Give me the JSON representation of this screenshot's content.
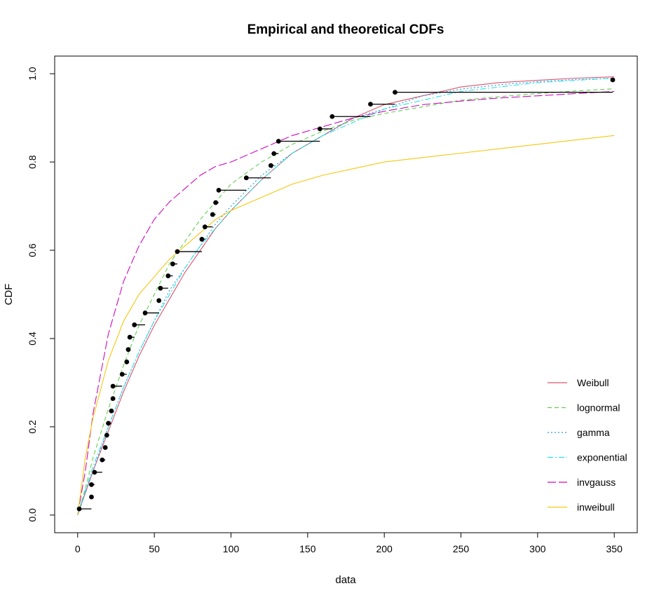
{
  "chart_data": {
    "type": "line",
    "title": "Empirical and theoretical CDFs",
    "xlabel": "data",
    "ylabel": "CDF",
    "xlim": [
      -15,
      365
    ],
    "ylim": [
      -0.04,
      1.04
    ],
    "xticks": [
      0,
      50,
      100,
      150,
      200,
      250,
      300,
      350
    ],
    "yticks": [
      0.0,
      0.2,
      0.4,
      0.6,
      0.8,
      1.0
    ],
    "xtick_labels": [
      "0",
      "50",
      "100",
      "150",
      "200",
      "250",
      "300",
      "350"
    ],
    "ytick_labels": [
      "0.0",
      "0.2",
      "0.4",
      "0.6",
      "0.8",
      "1.0"
    ],
    "legend_position": "bottom-right",
    "empirical": {
      "x": [
        1,
        9,
        9,
        11,
        16,
        18,
        19,
        20,
        22,
        23,
        23,
        29,
        32,
        33,
        34,
        37,
        44,
        53,
        54,
        59,
        62,
        65,
        81,
        83,
        88,
        90,
        92,
        110,
        126,
        128,
        131,
        158,
        166,
        191,
        207,
        349
      ],
      "y": [
        0.014,
        0.041,
        0.069,
        0.097,
        0.125,
        0.153,
        0.181,
        0.208,
        0.236,
        0.264,
        0.292,
        0.319,
        0.347,
        0.375,
        0.403,
        0.431,
        0.458,
        0.486,
        0.514,
        0.542,
        0.569,
        0.597,
        0.625,
        0.653,
        0.681,
        0.708,
        0.736,
        0.764,
        0.792,
        0.819,
        0.847,
        0.875,
        0.903,
        0.931,
        0.958,
        0.986
      ],
      "next": [
        9,
        9,
        11,
        16,
        18,
        19,
        20,
        22,
        23,
        23,
        29,
        32,
        33,
        34,
        37,
        44,
        53,
        54,
        59,
        62,
        65,
        81,
        83,
        88,
        90,
        92,
        110,
        126,
        128,
        131,
        158,
        166,
        191,
        207,
        349,
        349
      ]
    },
    "series": [
      {
        "name": "Weibull",
        "color": "#DF536B",
        "dash": "",
        "x": [
          0,
          5,
          10,
          20,
          30,
          40,
          50,
          60,
          70,
          80,
          90,
          100,
          120,
          140,
          160,
          180,
          200,
          225,
          250,
          275,
          300,
          325,
          350
        ],
        "values": [
          0.0,
          0.05,
          0.1,
          0.19,
          0.28,
          0.36,
          0.43,
          0.49,
          0.55,
          0.6,
          0.65,
          0.69,
          0.76,
          0.82,
          0.86,
          0.9,
          0.93,
          0.95,
          0.97,
          0.98,
          0.985,
          0.99,
          0.993
        ]
      },
      {
        "name": "lognormal",
        "color": "#61D04F",
        "dash": "6,4",
        "x": [
          0,
          5,
          10,
          20,
          30,
          40,
          50,
          60,
          70,
          80,
          90,
          100,
          120,
          140,
          160,
          180,
          200,
          225,
          250,
          275,
          300,
          325,
          350
        ],
        "values": [
          0.0,
          0.06,
          0.13,
          0.24,
          0.34,
          0.43,
          0.5,
          0.57,
          0.62,
          0.67,
          0.71,
          0.75,
          0.8,
          0.84,
          0.87,
          0.895,
          0.91,
          0.925,
          0.94,
          0.948,
          0.955,
          0.961,
          0.966
        ]
      },
      {
        "name": "gamma",
        "color": "#2297E6",
        "dash": "2,3",
        "x": [
          0,
          5,
          10,
          20,
          30,
          40,
          50,
          60,
          70,
          80,
          90,
          100,
          120,
          140,
          160,
          180,
          200,
          225,
          250,
          275,
          300,
          325,
          350
        ],
        "values": [
          0.0,
          0.05,
          0.1,
          0.2,
          0.29,
          0.37,
          0.44,
          0.51,
          0.56,
          0.61,
          0.66,
          0.7,
          0.77,
          0.82,
          0.86,
          0.9,
          0.92,
          0.95,
          0.965,
          0.975,
          0.982,
          0.987,
          0.99
        ]
      },
      {
        "name": "exponential",
        "color": "#28E2E5",
        "dash": "8,3,2,3",
        "x": [
          0,
          5,
          10,
          20,
          30,
          40,
          50,
          60,
          70,
          80,
          90,
          100,
          120,
          140,
          160,
          180,
          200,
          225,
          250,
          275,
          300,
          325,
          350
        ],
        "values": [
          0.0,
          0.055,
          0.11,
          0.2,
          0.29,
          0.37,
          0.44,
          0.5,
          0.56,
          0.61,
          0.65,
          0.69,
          0.76,
          0.82,
          0.86,
          0.89,
          0.92,
          0.94,
          0.96,
          0.97,
          0.98,
          0.985,
          0.99
        ]
      },
      {
        "name": "invgauss",
        "color": "#CD0BBC",
        "dash": "12,4",
        "x": [
          0,
          5,
          10,
          20,
          30,
          40,
          50,
          60,
          70,
          80,
          90,
          100,
          120,
          140,
          160,
          180,
          200,
          225,
          250,
          275,
          300,
          325,
          350
        ],
        "values": [
          0.0,
          0.1,
          0.23,
          0.41,
          0.53,
          0.61,
          0.67,
          0.71,
          0.74,
          0.77,
          0.79,
          0.8,
          0.83,
          0.86,
          0.88,
          0.9,
          0.915,
          0.93,
          0.938,
          0.945,
          0.95,
          0.955,
          0.96
        ]
      },
      {
        "name": "inweibull",
        "color": "#F5C710",
        "dash": "",
        "x": [
          0,
          5,
          10,
          20,
          30,
          40,
          50,
          60,
          70,
          80,
          90,
          100,
          120,
          140,
          160,
          180,
          200,
          225,
          250,
          275,
          300,
          325,
          350
        ],
        "values": [
          0.0,
          0.13,
          0.22,
          0.35,
          0.44,
          0.5,
          0.54,
          0.58,
          0.61,
          0.64,
          0.67,
          0.69,
          0.72,
          0.75,
          0.77,
          0.785,
          0.8,
          0.81,
          0.82,
          0.83,
          0.84,
          0.85,
          0.86
        ]
      }
    ]
  }
}
